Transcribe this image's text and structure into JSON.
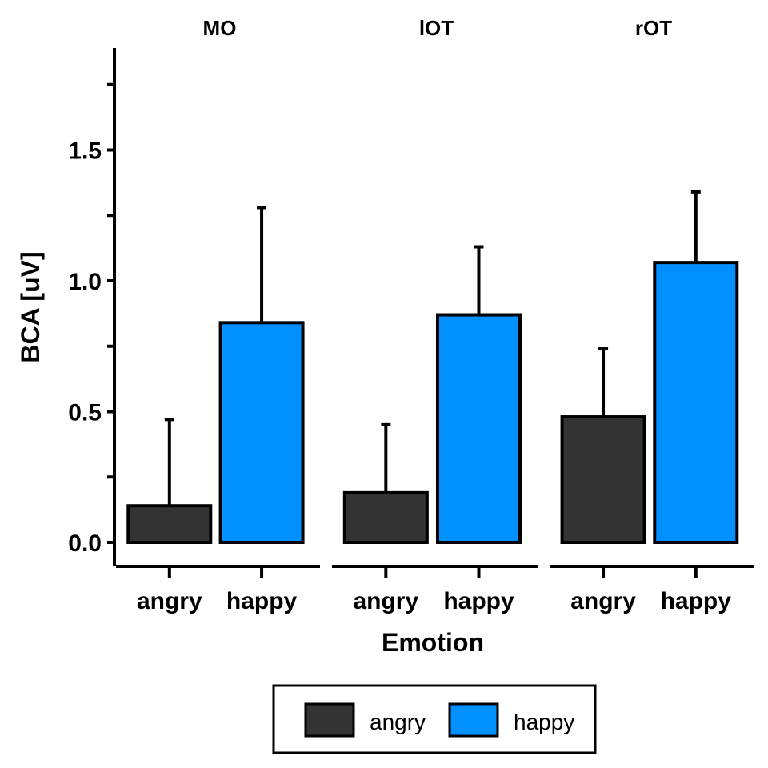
{
  "chart_data": {
    "type": "bar",
    "ylabel": "BCA [uV]",
    "xlabel": "Emotion",
    "ylim": [
      -0.09,
      1.9
    ],
    "yticks": [
      {
        "value": 0.0,
        "label": "0.0"
      },
      {
        "value": 0.5,
        "label": "0.5"
      },
      {
        "value": 1.0,
        "label": "1.0"
      },
      {
        "value": 1.5,
        "label": "1.5"
      }
    ],
    "minor_ticks": [
      0.25,
      0.75,
      1.25,
      1.75
    ],
    "categories": [
      "angry",
      "happy"
    ],
    "facets": [
      {
        "title": "MO",
        "values": [
          0.14,
          0.84
        ],
        "errors": [
          0.47,
          1.28
        ]
      },
      {
        "title": "lOT",
        "values": [
          0.19,
          0.87
        ],
        "errors": [
          0.45,
          1.13
        ]
      },
      {
        "title": "rOT",
        "values": [
          0.48,
          1.07
        ],
        "errors": [
          0.74,
          1.34
        ]
      }
    ],
    "series_colors": {
      "angry": "#333333",
      "happy": "#0090ff"
    },
    "legend": {
      "position": "bottom",
      "entries": [
        {
          "label": "angry",
          "color": "#333333"
        },
        {
          "label": "happy",
          "color": "#0090ff"
        }
      ]
    },
    "grid": false
  }
}
